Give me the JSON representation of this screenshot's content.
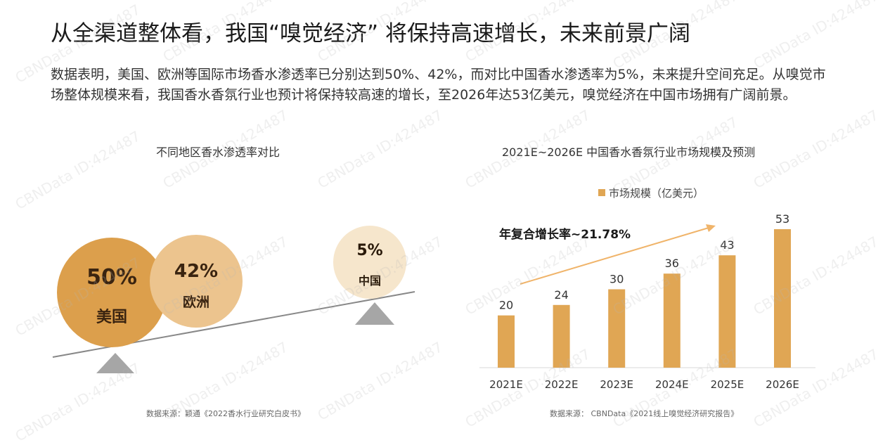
{
  "heading": "从全渠道整体看，我国“嗅觉经济” 将保持高速增长，未来前景广阔",
  "paragraph": "数据表明，美国、欧洲等国际市场香水渗透率已分别达到50%、42%，而对比中国香水渗透率为5%，未来提升空间充足。从嗅觉市场整体规模来看，我国香水香氛行业也预计将保持较高速的增长，至2026年达53亿美元，嗅觉经济在中国市场拥有广阔前景。",
  "watermark": "CBNData ID:424487",
  "colors": {
    "bar": "#e0a654",
    "usa": "#dc9f4c",
    "europe": "#ecc48e",
    "china": "#f6e6cc",
    "pivot": "#a6a6a6",
    "arrow": "#f0b46a"
  },
  "left_panel": {
    "source": "数据来源：颖通《2022香水行业研究白皮书》"
  },
  "right_panel": {
    "source": "数据来源：  CBNData《2021线上嗅觉经济研究报告》",
    "growth_note": "年复合增长率~21.78%"
  },
  "chart_data": [
    {
      "type": "bubble",
      "title": "不同地区香水渗透率对比",
      "categories": [
        "美国",
        "欧洲",
        "中国"
      ],
      "values": [
        50,
        42,
        5
      ],
      "value_labels": [
        "50%",
        "42%",
        "5%"
      ],
      "unit": "%"
    },
    {
      "type": "bar",
      "title": "2021E~2026E 中国香水香氛行业市场规模及预测",
      "categories": [
        "2021E",
        "2022E",
        "2023E",
        "2024E",
        "2025E",
        "2026E"
      ],
      "series": [
        {
          "name": "市场规模（亿美元）",
          "values": [
            20,
            24,
            30,
            36,
            43,
            53
          ]
        }
      ],
      "ylim": [
        0,
        53
      ],
      "legend": "top"
    }
  ]
}
